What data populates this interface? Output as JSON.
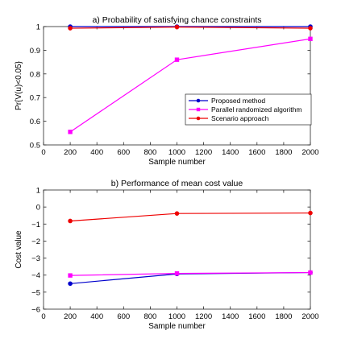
{
  "chart_data": [
    {
      "type": "line",
      "title": "a) Probability of satisfying chance constraints",
      "xlabel": "Sample number",
      "ylabel": "Pr{V(u)<0.05}",
      "xlim": [
        0,
        2000
      ],
      "ylim": [
        0.5,
        1
      ],
      "xticks": [
        0,
        200,
        400,
        600,
        800,
        1000,
        1200,
        1400,
        1600,
        1800,
        2000
      ],
      "yticks": [
        0.5,
        0.6,
        0.7,
        0.8,
        0.9,
        1
      ],
      "ytick_labels": [
        "0.5",
        "0.6",
        "0.7",
        "0.8",
        "0.9",
        "1"
      ],
      "grid": false,
      "legend_position": "center-right",
      "x": [
        200,
        1000,
        2000
      ],
      "series": [
        {
          "name": "Proposed method",
          "values": [
            1.0,
            1.0,
            1.0
          ],
          "color": "#0000cc",
          "marker": "circle"
        },
        {
          "name": "Parallel randomized algorithm",
          "values": [
            0.555,
            0.86,
            0.948
          ],
          "color": "#ff00ff",
          "marker": "square"
        },
        {
          "name": "Scenario approach",
          "values": [
            0.993,
            0.998,
            0.993
          ],
          "color": "#ee0000",
          "marker": "circle"
        }
      ]
    },
    {
      "type": "line",
      "title": "b) Performance of mean cost value",
      "xlabel": "Sample number",
      "ylabel": "Cost value",
      "xlim": [
        0,
        2000
      ],
      "ylim": [
        -6,
        1
      ],
      "xticks": [
        0,
        200,
        400,
        600,
        800,
        1000,
        1200,
        1400,
        1600,
        1800,
        2000
      ],
      "yticks": [
        -6,
        -5,
        -4,
        -3,
        -2,
        -1,
        0,
        1
      ],
      "ytick_labels": [
        "−6",
        "−5",
        "−4",
        "−3",
        "−2",
        "−1",
        "0",
        "1"
      ],
      "grid": false,
      "x": [
        200,
        1000,
        2000
      ],
      "series": [
        {
          "values": [
            -4.5,
            -3.93,
            -3.85
          ],
          "color": "#0000cc",
          "marker": "circle"
        },
        {
          "values": [
            -4.02,
            -3.9,
            -3.85
          ],
          "color": "#ff00ff",
          "marker": "square"
        },
        {
          "values": [
            -0.82,
            -0.38,
            -0.35
          ],
          "color": "#ee0000",
          "marker": "circle"
        }
      ]
    }
  ]
}
